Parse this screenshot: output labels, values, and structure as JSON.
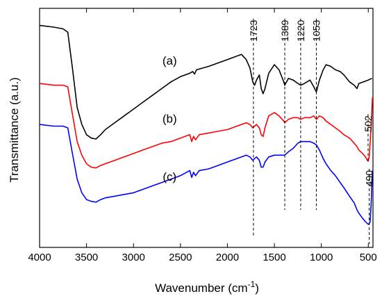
{
  "chart_data": {
    "type": "line",
    "xlabel": "Wavenumber (cm",
    "xlabel_sup": "-1",
    "xlabel_tail": ")",
    "ylabel": "Transmittance (a.u.)",
    "xlim": [
      4000,
      450
    ],
    "x_reversed": true,
    "x_ticks": [
      4000,
      3500,
      3000,
      2500,
      2000,
      1500,
      1000,
      500
    ],
    "y_ticks_shown": false,
    "grid": false,
    "series": [
      {
        "name": "(a)",
        "color": "#000000",
        "points": [
          [
            4000,
            70
          ],
          [
            3850,
            69
          ],
          [
            3750,
            68
          ],
          [
            3700,
            66
          ],
          [
            3650,
            45
          ],
          [
            3600,
            22
          ],
          [
            3550,
            12
          ],
          [
            3500,
            6
          ],
          [
            3450,
            4
          ],
          [
            3400,
            3.5
          ],
          [
            3350,
            6
          ],
          [
            3300,
            9
          ],
          [
            3200,
            13
          ],
          [
            3100,
            17
          ],
          [
            3000,
            21
          ],
          [
            2900,
            25
          ],
          [
            2800,
            29
          ],
          [
            2700,
            33
          ],
          [
            2600,
            37
          ],
          [
            2500,
            40
          ],
          [
            2400,
            42
          ],
          [
            2370,
            43
          ],
          [
            2350,
            41.5
          ],
          [
            2330,
            44
          ],
          [
            2200,
            46
          ],
          [
            2100,
            48
          ],
          [
            2000,
            50
          ],
          [
            1900,
            52
          ],
          [
            1850,
            53
          ],
          [
            1800,
            50
          ],
          [
            1760,
            45
          ],
          [
            1730,
            37
          ],
          [
            1710,
            35
          ],
          [
            1690,
            38
          ],
          [
            1660,
            41
          ],
          [
            1640,
            33
          ],
          [
            1620,
            30
          ],
          [
            1600,
            33
          ],
          [
            1560,
            42
          ],
          [
            1500,
            47
          ],
          [
            1450,
            44
          ],
          [
            1400,
            37
          ],
          [
            1389,
            35
          ],
          [
            1350,
            39
          ],
          [
            1300,
            38
          ],
          [
            1250,
            36
          ],
          [
            1220,
            35
          ],
          [
            1180,
            36
          ],
          [
            1120,
            38
          ],
          [
            1080,
            34
          ],
          [
            1053,
            31
          ],
          [
            1020,
            38
          ],
          [
            980,
            44
          ],
          [
            950,
            47
          ],
          [
            900,
            46
          ],
          [
            850,
            44
          ],
          [
            800,
            43
          ],
          [
            760,
            41
          ],
          [
            700,
            37
          ],
          [
            650,
            35
          ],
          [
            620,
            33
          ],
          [
            600,
            36
          ],
          [
            550,
            37
          ],
          [
            500,
            38
          ],
          [
            460,
            39
          ]
        ]
      },
      {
        "name": "(b)",
        "color": "#ff0000",
        "points": [
          [
            4000,
            36
          ],
          [
            3850,
            35
          ],
          [
            3750,
            35
          ],
          [
            3700,
            34
          ],
          [
            3650,
            18
          ],
          [
            3600,
            2
          ],
          [
            3550,
            -6
          ],
          [
            3500,
            -11
          ],
          [
            3450,
            -13
          ],
          [
            3400,
            -13.5
          ],
          [
            3350,
            -12
          ],
          [
            3300,
            -11
          ],
          [
            3200,
            -9
          ],
          [
            3100,
            -7
          ],
          [
            3000,
            -5
          ],
          [
            2900,
            -3
          ],
          [
            2800,
            -1
          ],
          [
            2700,
            1
          ],
          [
            2600,
            2
          ],
          [
            2500,
            4
          ],
          [
            2400,
            6
          ],
          [
            2380,
            2
          ],
          [
            2360,
            5
          ],
          [
            2340,
            3
          ],
          [
            2300,
            6
          ],
          [
            2200,
            7
          ],
          [
            2100,
            8
          ],
          [
            2000,
            9
          ],
          [
            1900,
            11
          ],
          [
            1850,
            12
          ],
          [
            1800,
            13
          ],
          [
            1760,
            12
          ],
          [
            1730,
            10
          ],
          [
            1710,
            11
          ],
          [
            1690,
            12
          ],
          [
            1660,
            10
          ],
          [
            1640,
            6
          ],
          [
            1620,
            5
          ],
          [
            1600,
            10
          ],
          [
            1560,
            17
          ],
          [
            1500,
            19
          ],
          [
            1450,
            17
          ],
          [
            1400,
            14
          ],
          [
            1389,
            13
          ],
          [
            1350,
            15
          ],
          [
            1300,
            16
          ],
          [
            1250,
            16
          ],
          [
            1220,
            15
          ],
          [
            1180,
            16
          ],
          [
            1120,
            16
          ],
          [
            1080,
            17
          ],
          [
            1053,
            15
          ],
          [
            1020,
            17
          ],
          [
            980,
            16
          ],
          [
            950,
            14
          ],
          [
            900,
            12
          ],
          [
            850,
            10
          ],
          [
            800,
            8
          ],
          [
            760,
            6
          ],
          [
            700,
            4
          ],
          [
            650,
            1
          ],
          [
            620,
            -1
          ],
          [
            600,
            -3
          ],
          [
            560,
            -5
          ],
          [
            530,
            -7
          ],
          [
            510,
            -9
          ],
          [
            502,
            -9.5
          ],
          [
            490,
            -7
          ],
          [
            470,
            10
          ],
          [
            455,
            28
          ]
        ]
      },
      {
        "name": "(c)",
        "color": "#0000ff",
        "points": [
          [
            4000,
            12
          ],
          [
            3850,
            11
          ],
          [
            3750,
            11
          ],
          [
            3700,
            10
          ],
          [
            3650,
            -5
          ],
          [
            3600,
            -20
          ],
          [
            3550,
            -28
          ],
          [
            3500,
            -32
          ],
          [
            3450,
            -33
          ],
          [
            3400,
            -33.5
          ],
          [
            3350,
            -32
          ],
          [
            3300,
            -31
          ],
          [
            3200,
            -30
          ],
          [
            3100,
            -29
          ],
          [
            3000,
            -28
          ],
          [
            2900,
            -26
          ],
          [
            2800,
            -24
          ],
          [
            2700,
            -22
          ],
          [
            2600,
            -20
          ],
          [
            2500,
            -18
          ],
          [
            2400,
            -15
          ],
          [
            2380,
            -19
          ],
          [
            2360,
            -16
          ],
          [
            2340,
            -18
          ],
          [
            2300,
            -15
          ],
          [
            2200,
            -14
          ],
          [
            2100,
            -12
          ],
          [
            2000,
            -10
          ],
          [
            1900,
            -8
          ],
          [
            1850,
            -7
          ],
          [
            1800,
            -6
          ],
          [
            1760,
            -7
          ],
          [
            1730,
            -9
          ],
          [
            1710,
            -8
          ],
          [
            1690,
            -7
          ],
          [
            1660,
            -9
          ],
          [
            1640,
            -13
          ],
          [
            1620,
            -13
          ],
          [
            1600,
            -10
          ],
          [
            1560,
            -7
          ],
          [
            1500,
            -6
          ],
          [
            1450,
            -6
          ],
          [
            1400,
            -6
          ],
          [
            1389,
            -6
          ],
          [
            1350,
            -4
          ],
          [
            1300,
            -2
          ],
          [
            1250,
            1
          ],
          [
            1220,
            2
          ],
          [
            1180,
            2
          ],
          [
            1120,
            2
          ],
          [
            1080,
            1
          ],
          [
            1053,
            0
          ],
          [
            1020,
            -3
          ],
          [
            980,
            -8
          ],
          [
            950,
            -11
          ],
          [
            900,
            -15
          ],
          [
            850,
            -18
          ],
          [
            800,
            -22
          ],
          [
            760,
            -25
          ],
          [
            700,
            -30
          ],
          [
            650,
            -34
          ],
          [
            620,
            -38
          ],
          [
            600,
            -40
          ],
          [
            560,
            -43
          ],
          [
            530,
            -45
          ],
          [
            510,
            -46
          ],
          [
            500,
            -46.5
          ],
          [
            490,
            -46
          ],
          [
            480,
            -45
          ],
          [
            470,
            -35
          ],
          [
            455,
            -15
          ]
        ]
      }
    ],
    "ylim": [
      -60,
      80
    ],
    "annotations": {
      "series_labels": [
        {
          "text": "(a)",
          "x": 2600,
          "y": 47
        },
        {
          "text": "(b)",
          "x": 2600,
          "y": 13
        },
        {
          "text": "(c)",
          "x": 2600,
          "y": -21
        }
      ],
      "peak_lines": [
        {
          "label": "1723",
          "x": 1723,
          "y_from": 74,
          "y_to": -53
        },
        {
          "label": "1389",
          "x": 1389,
          "y_from": 74,
          "y_to": -38
        },
        {
          "label": "1220",
          "x": 1220,
          "y_from": 74,
          "y_to": -38
        },
        {
          "label": "1053",
          "x": 1053,
          "y_from": 74,
          "y_to": -38
        },
        {
          "label": "502",
          "x": 502,
          "y_from": 18,
          "y_to": -9.5
        },
        {
          "label": "490",
          "x": 490,
          "y_from": -14,
          "y_to": -58
        }
      ]
    }
  }
}
